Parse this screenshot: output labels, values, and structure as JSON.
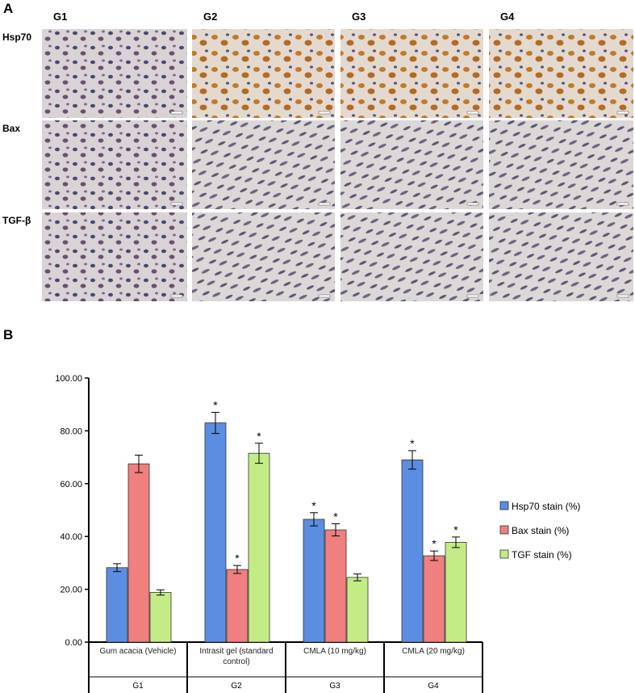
{
  "panel_a": {
    "label": "A",
    "columns": [
      "G1",
      "G2",
      "G3",
      "G4"
    ],
    "rows": [
      "Hsp70",
      "Bax",
      "TGF-β"
    ]
  },
  "panel_b_label": "B",
  "chart_data": {
    "type": "bar",
    "categories": [
      "Gum acacia (Vehicle)",
      "Intrasit gel (standard control)",
      "CMLA (10 mg/kg)",
      "CMLA (20 mg/kg)"
    ],
    "category_groups": [
      "G1",
      "G2",
      "G3",
      "G4"
    ],
    "series": [
      {
        "name": "Hsp70 stain (%)",
        "color": "#5b8ee0",
        "values": [
          28.2,
          83,
          46.5,
          69
        ],
        "errors": [
          1.5,
          4,
          2.5,
          3.5
        ],
        "significance": [
          null,
          "*",
          "*",
          "*"
        ]
      },
      {
        "name": "Bax stain (%)",
        "color": "#f07f7f",
        "values": [
          67.5,
          27.5,
          42.5,
          32.7
        ],
        "errors": [
          3.3,
          1.5,
          2.3,
          1.8
        ],
        "significance": [
          null,
          "*",
          "*",
          "*"
        ]
      },
      {
        "name": "TGF stain (%)",
        "color": "#c4ec86",
        "values": [
          18.8,
          71.5,
          24.5,
          37.8
        ],
        "errors": [
          1,
          3.8,
          1.3,
          2
        ],
        "significance": [
          null,
          "*",
          null,
          "*"
        ]
      }
    ],
    "ylim": [
      0,
      100
    ],
    "yticks": [
      {
        "value": 0,
        "label": "0.00"
      },
      {
        "value": 20,
        "label": "20.00"
      },
      {
        "value": 40,
        "label": "40.00"
      },
      {
        "value": 60,
        "label": "60.00"
      },
      {
        "value": 80,
        "label": "80.00"
      },
      {
        "value": 100,
        "label": "100.00"
      }
    ],
    "legend": "right"
  }
}
